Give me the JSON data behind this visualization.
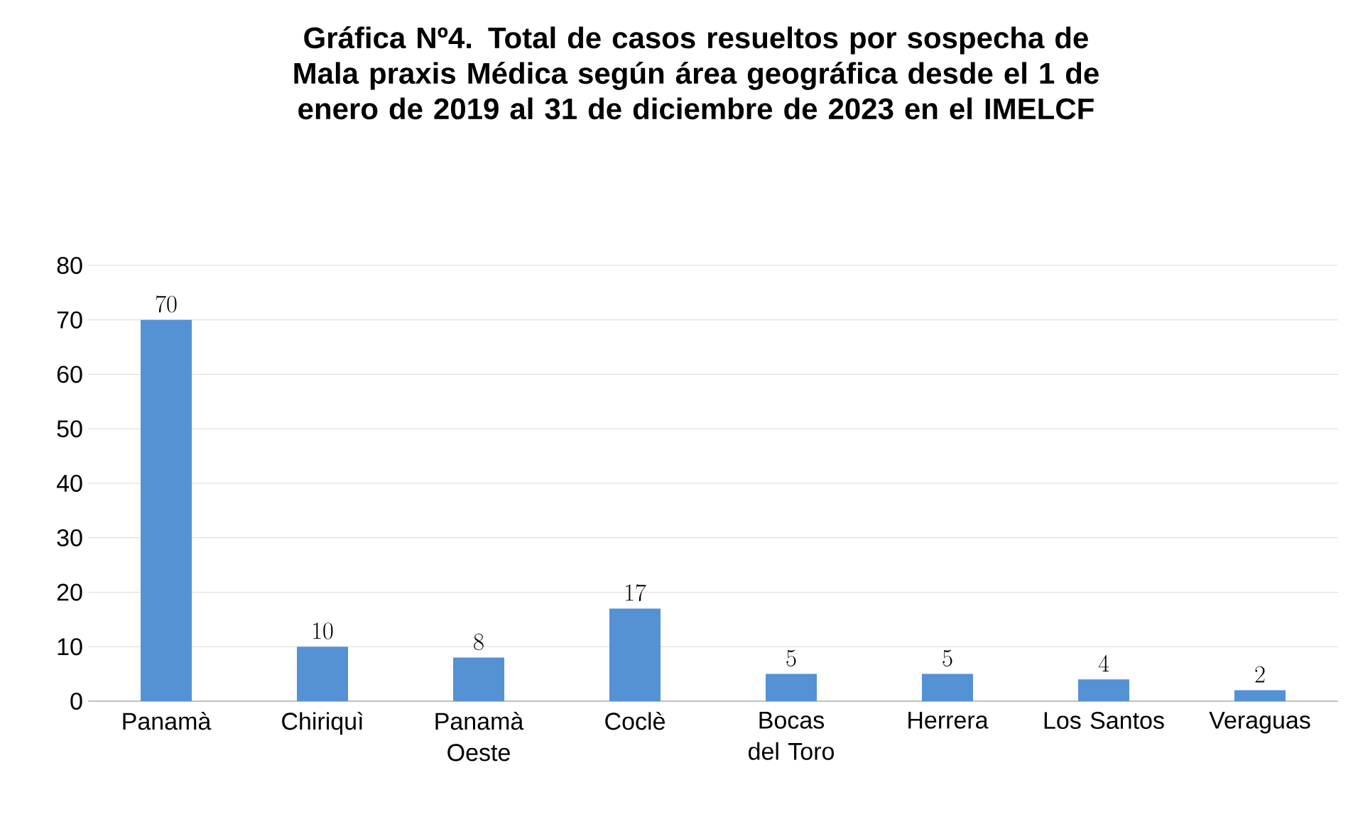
{
  "chart_data": {
    "type": "bar",
    "title": "Gráfica Nº4. Total de casos resueltos por sospecha de Mala praxis Médica según área geográfica desde el 1 de enero de 2019 al 31 de diciembre de 2023 en el IMELCF",
    "categories": [
      "Panamà",
      "Chiriquì",
      "Panamà Oeste",
      "Coclè",
      "Bocas del Toro",
      "Herrera",
      "Los Santos",
      "Veraguas"
    ],
    "values": [
      70,
      10,
      8,
      17,
      5,
      5,
      4,
      2
    ],
    "color": "#5592d4",
    "ylim": [
      0,
      80
    ],
    "yticks": [
      0,
      10,
      20,
      30,
      40,
      50,
      60,
      70,
      80
    ],
    "grid": "y",
    "data_labels": true
  }
}
